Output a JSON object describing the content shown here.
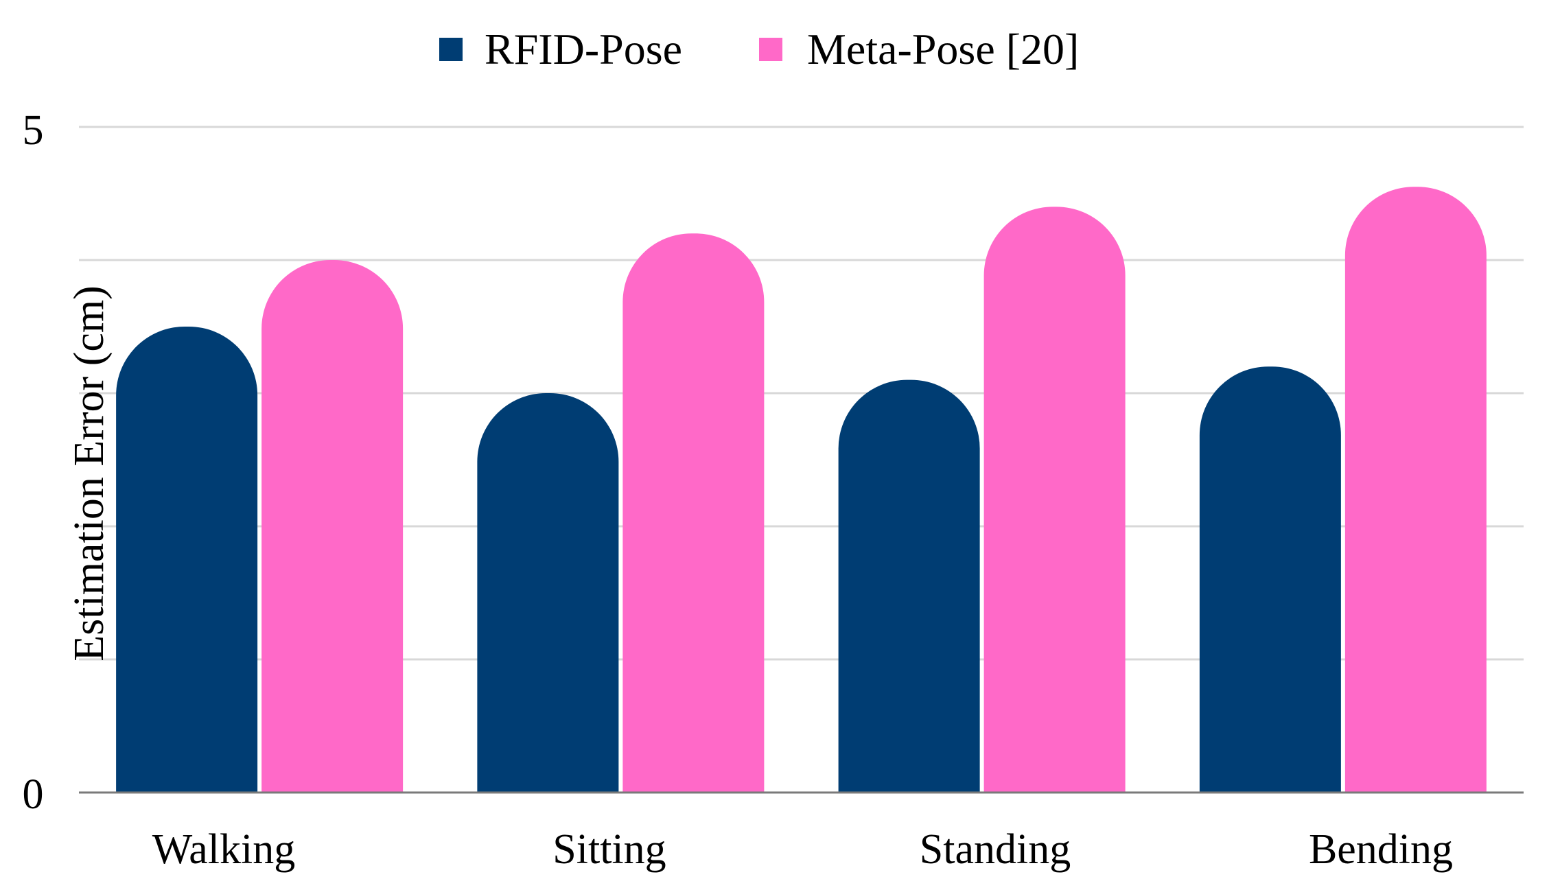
{
  "chart_data": {
    "type": "bar",
    "title": "",
    "xlabel": "",
    "ylabel": "Estimation Error (cm)",
    "categories": [
      "Walking",
      "Sitting",
      "Standing",
      "Bending"
    ],
    "series": [
      {
        "name": "RFID-Pose",
        "color": "#003d73",
        "values": [
          3.5,
          3.0,
          3.1,
          3.2
        ]
      },
      {
        "name": "Meta-Pose [20]",
        "color": "#ff69c8",
        "values": [
          4.0,
          4.2,
          4.4,
          4.55
        ]
      }
    ],
    "ylim": [
      0,
      5
    ],
    "yticks": [
      "0",
      "5"
    ],
    "gridlines": [
      1,
      2,
      3,
      4,
      5
    ],
    "grid": true,
    "legend_position": "top-center",
    "colors": {
      "grid": "#d8d8d8",
      "axis": "#7a7a7a"
    }
  }
}
